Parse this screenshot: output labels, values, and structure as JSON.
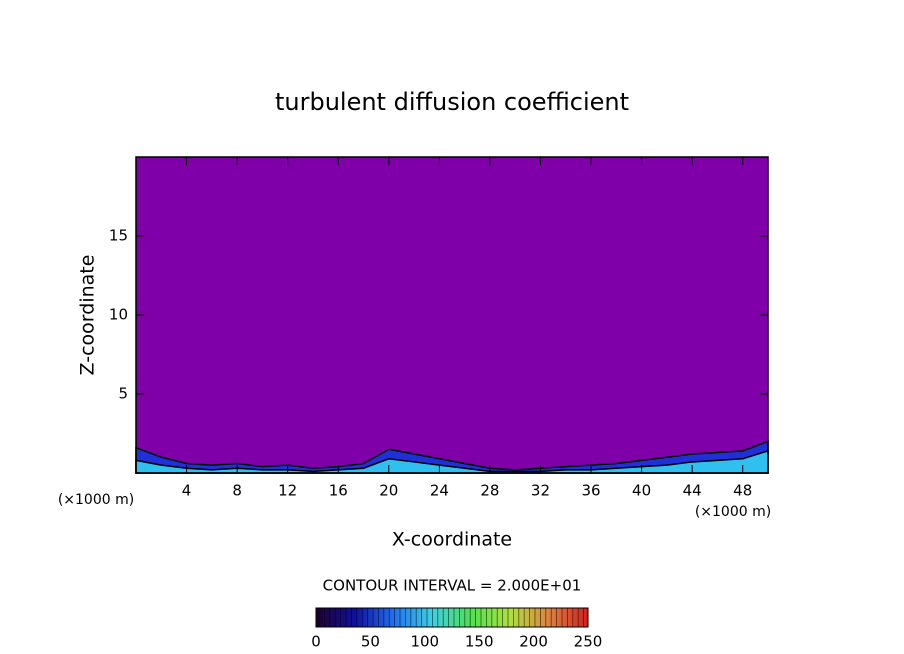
{
  "chart_data": {
    "type": "contour",
    "title": "turbulent diffusion coefficient",
    "x_label": "X-coordinate",
    "y_label": "Z-coordinate",
    "x_unit": "(×1000 m)",
    "x_unit_right": "(×1000 m)",
    "note": "CONTOUR INTERVAL = 2.000E+01",
    "xlim": [
      0,
      50
    ],
    "xticks": [
      4,
      8,
      12,
      16,
      20,
      24,
      28,
      32,
      36,
      40,
      44,
      48
    ],
    "ylim": [
      0,
      20
    ],
    "yticks": [
      5,
      10,
      15
    ],
    "background_color": "#7f00a8",
    "x": [
      0,
      2,
      4,
      6,
      8,
      10,
      12,
      14,
      16,
      18,
      20,
      22,
      24,
      26,
      28,
      30,
      32,
      34,
      36,
      38,
      40,
      42,
      44,
      46,
      48,
      50
    ],
    "contours": [
      {
        "level": 20,
        "color": "#2030d8",
        "values": [
          1.6,
          1.0,
          0.6,
          0.5,
          0.6,
          0.4,
          0.5,
          0.3,
          0.4,
          0.6,
          1.5,
          1.2,
          0.9,
          0.6,
          0.3,
          0.2,
          0.3,
          0.4,
          0.5,
          0.6,
          0.8,
          1.0,
          1.2,
          1.3,
          1.4,
          2.0
        ]
      },
      {
        "level": 60,
        "color": "#30c0f0",
        "values": [
          0.8,
          0.5,
          0.3,
          0.2,
          0.3,
          0.2,
          0.2,
          0.1,
          0.2,
          0.3,
          0.9,
          0.7,
          0.5,
          0.3,
          0.1,
          0.1,
          0.1,
          0.2,
          0.2,
          0.3,
          0.4,
          0.5,
          0.7,
          0.8,
          0.9,
          1.4
        ]
      }
    ],
    "colorbar": {
      "lim": [
        0,
        250
      ],
      "ticks": [
        0,
        50,
        100,
        150,
        200,
        250
      ],
      "colors": [
        "#200030",
        "#1010a0",
        "#2070f0",
        "#40d0e0",
        "#50e050",
        "#b0e040",
        "#e08040",
        "#d02020"
      ]
    }
  }
}
